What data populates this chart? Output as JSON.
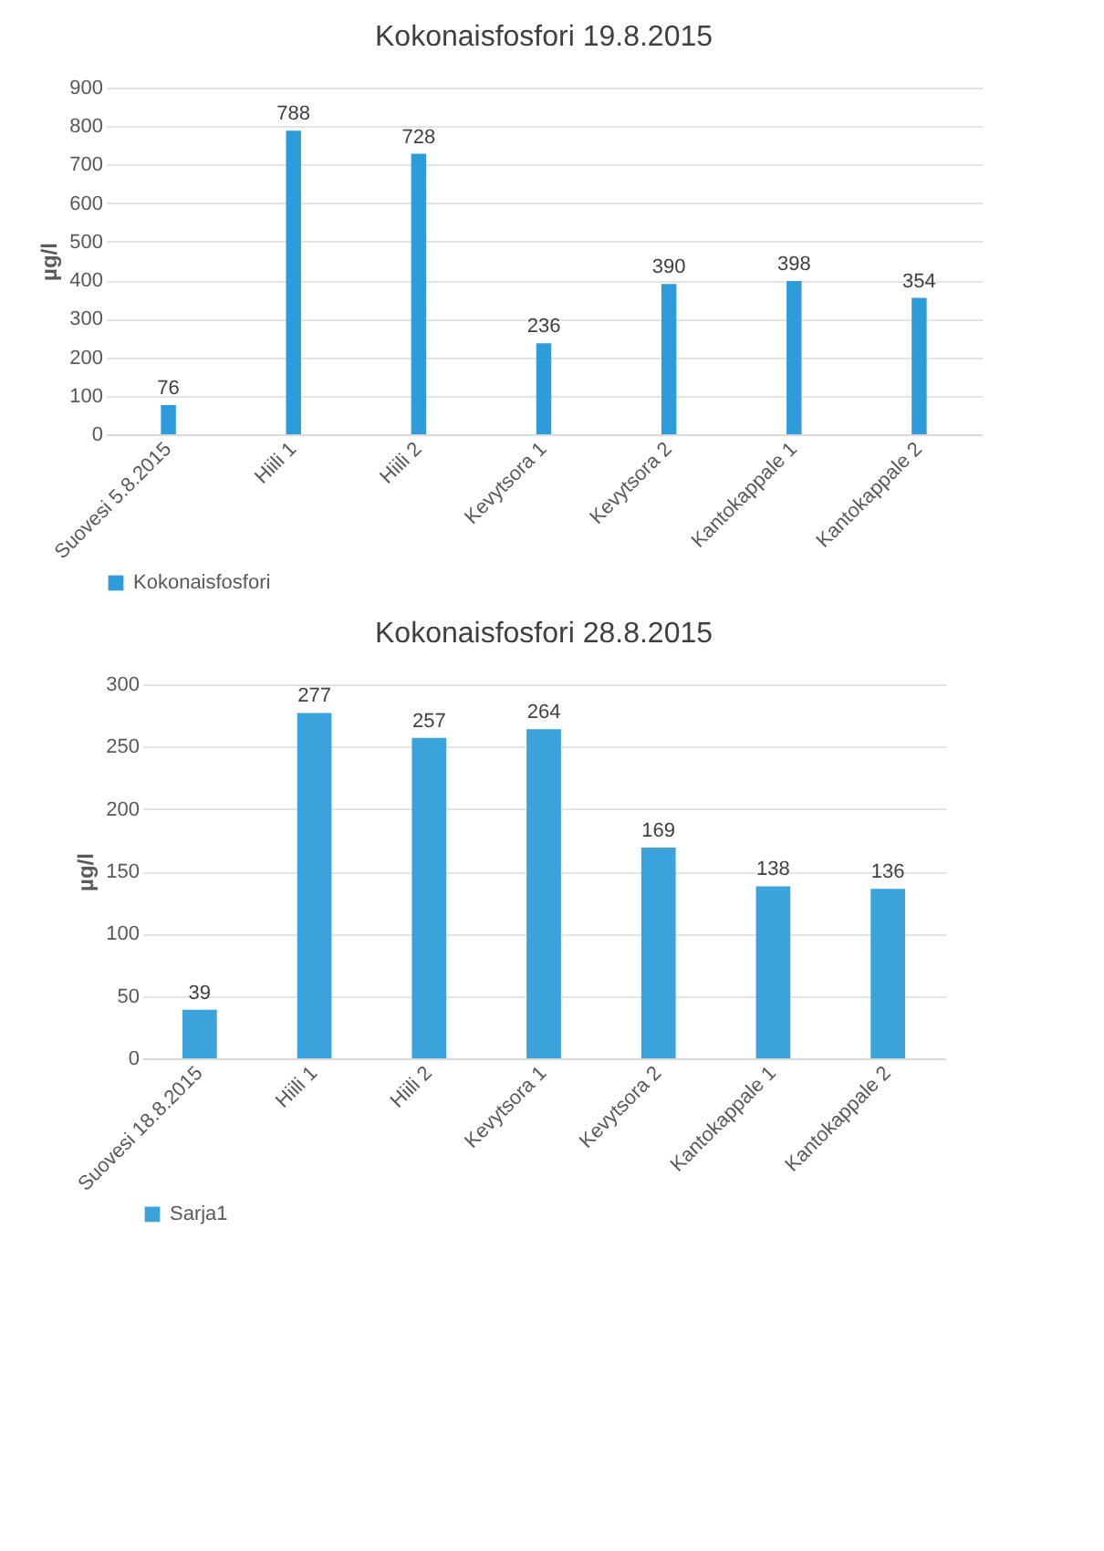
{
  "chart_data": [
    {
      "type": "bar",
      "title": "Kokonaisfosfori  19.8.2015",
      "ylabel": "µg/l",
      "categories": [
        "Suovesi 5.8.2015",
        "Hiili 1",
        "Hiili 2",
        "Kevytsora 1",
        "Kevytsora 2",
        "Kantokappale 1",
        "Kantokappale 2"
      ],
      "series": [
        {
          "name": "Kokonaisfosfori",
          "color": "#2e9cdb",
          "values": [
            76,
            788,
            728,
            236,
            390,
            398,
            354
          ]
        }
      ],
      "ylim": [
        0,
        900
      ],
      "yticks": [
        0,
        100,
        200,
        300,
        400,
        500,
        600,
        700,
        800,
        900
      ],
      "grid": "y",
      "legend": "bottom",
      "data_labels": true
    },
    {
      "type": "bar",
      "title": "Kokonaisfosfori  28.8.2015",
      "ylabel": "µg/l",
      "categories": [
        "Suovesi 18.8.2015",
        "Hiili 1",
        "Hiili 2",
        "Kevytsora 1",
        "Kevytsora 2",
        "Kantokappale 1",
        "Kantokappale 2"
      ],
      "series": [
        {
          "name": "Sarja1",
          "color": "#3aa3dc",
          "values": [
            39,
            277,
            257,
            264,
            169,
            138,
            136
          ]
        }
      ],
      "ylim": [
        0,
        300
      ],
      "yticks": [
        0,
        50,
        100,
        150,
        200,
        250,
        300
      ],
      "grid": "y",
      "legend": "bottom",
      "data_labels": true
    }
  ]
}
